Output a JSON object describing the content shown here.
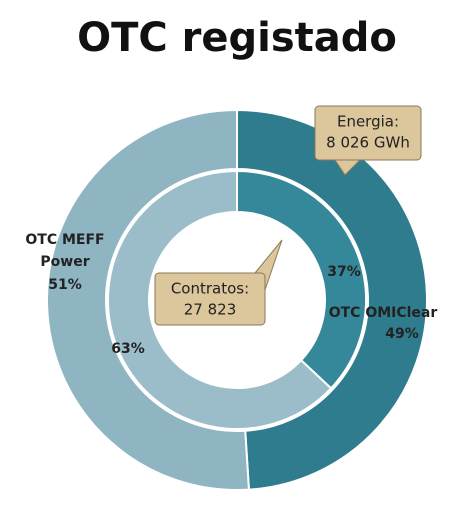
{
  "chart_data": {
    "type": "donut",
    "title": "OTC registado",
    "categories": [
      "OTC OMIClear",
      "OTC MEFF Power"
    ],
    "series": [
      {
        "values": [
          49,
          51
        ],
        "value_labels": [
          "49%",
          "51%"
        ],
        "colors": [
          "#2e7c8e",
          "#8fb4c2"
        ]
      },
      {
        "values": [
          37,
          63
        ],
        "value_labels": [
          "37%",
          "63%"
        ],
        "colors": [
          "#35889a",
          "#9bbdc9"
        ]
      }
    ],
    "annotations": [
      {
        "text": [
          "Energia:",
          "8 026 GWh"
        ]
      },
      {
        "text": [
          "Contratos:",
          "27 823"
        ]
      }
    ]
  }
}
